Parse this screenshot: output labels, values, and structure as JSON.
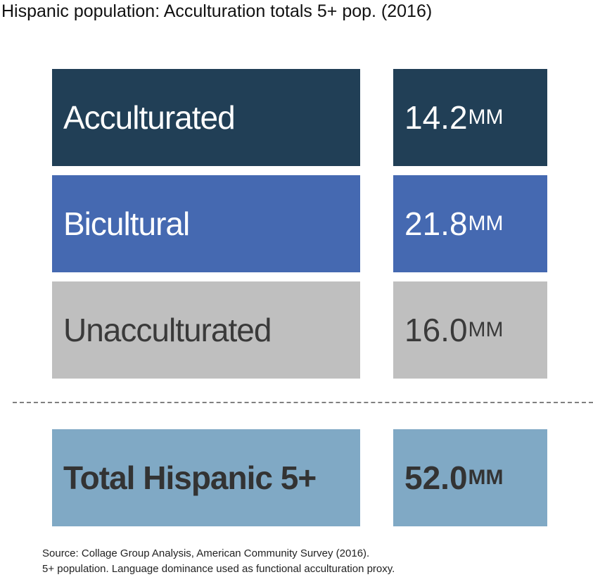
{
  "title": "Hispanic population: Acculturation totals 5+ pop. (2016)",
  "chart_data": {
    "type": "table",
    "title": "Hispanic population: Acculturation totals 5+ pop. (2016)",
    "rows": [
      {
        "label": "Acculturated",
        "value": 14.2,
        "display": "14.2",
        "unit": "MM",
        "color": "#213f56"
      },
      {
        "label": "Bicultural",
        "value": 21.8,
        "display": "21.8",
        "unit": "MM",
        "color": "#4569b1"
      },
      {
        "label": "Unacculturated",
        "value": 16.0,
        "display": "16.0",
        "unit": "MM",
        "color": "#bfbfbf"
      }
    ],
    "total": {
      "label": "Total Hispanic 5+",
      "value": 52.0,
      "display": "52.0",
      "unit": "MM",
      "color": "#80a9c5"
    }
  },
  "source": {
    "line1": "Source: Collage Group Analysis, American Community Survey (2016).",
    "line2": "5+ population. Language dominance used as functional acculturation proxy."
  }
}
